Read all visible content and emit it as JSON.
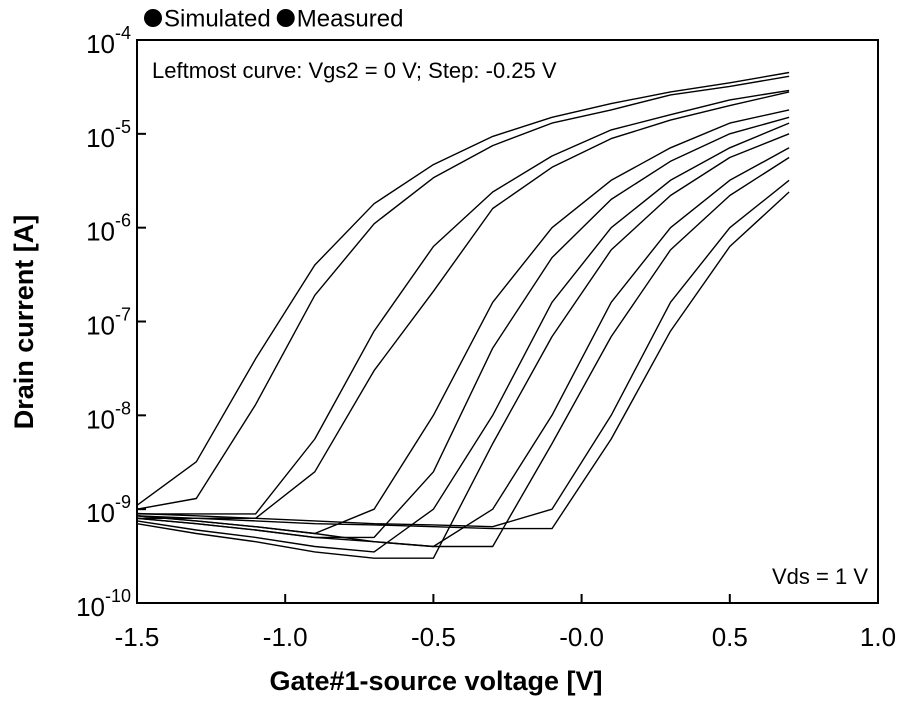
{
  "chart_data": {
    "type": "line",
    "log_y": true,
    "xlabel": "Gate#1-source voltage  [V]",
    "ylabel": "Drain current  [A]",
    "annotations": [
      "Leftmost curve: Vgs2 = 0 V; Step: -0.25 V",
      "Vds = 1 V"
    ],
    "xlim": [
      -1.5,
      1.0
    ],
    "ylim": [
      1e-10,
      0.0001
    ],
    "xticks": [
      {
        "value": -1.5,
        "label": "-1.5"
      },
      {
        "value": -1.0,
        "label": "-1.0"
      },
      {
        "value": -0.5,
        "label": "-0.5"
      },
      {
        "value": 0,
        "label": "-0.0"
      },
      {
        "value": 0.5,
        "label": "0.5"
      },
      {
        "value": 1.0,
        "label": "1.0"
      }
    ],
    "yticks": [
      {
        "value": 1e-10,
        "label": "10-10"
      },
      {
        "value": 1e-09,
        "label": "10-9"
      },
      {
        "value": 1e-08,
        "label": "10-8"
      },
      {
        "value": 1e-07,
        "label": "10-7"
      },
      {
        "value": 1e-06,
        "label": "10-6"
      },
      {
        "value": 1e-05,
        "label": "10-5"
      },
      {
        "value": 0.0001,
        "label": "10-4"
      }
    ],
    "x": [
      -1.5,
      -1.3,
      -1.1,
      -0.9,
      -0.7,
      -0.5,
      -0.3,
      -0.1,
      0.1,
      0.3,
      0.5,
      0.7
    ],
    "series": [
      {
        "name": "Simulated",
        "color": "#000000",
        "values": [
          [
            1.1e-09,
            3.2e-09,
            4e-08,
            4e-07,
            1.8e-06,
            4.7e-06,
            9.4e-06,
            1.5e-05,
            2.1e-05,
            2.8e-05,
            3.5e-05,
            4.5e-05
          ],
          [
            8.9e-10,
            8.9e-10,
            8.9e-10,
            5.6e-09,
            7.9e-08,
            6.3e-07,
            2.4e-06,
            5.8e-06,
            1.1e-05,
            1.6e-05,
            2.3e-05,
            2.9e-05
          ],
          [
            8.5e-10,
            7.5e-10,
            6.5e-10,
            5.5e-10,
            1e-09,
            1e-08,
            1.6e-07,
            1e-06,
            3.2e-06,
            7.1e-06,
            1.3e-05,
            1.8e-05
          ],
          [
            7.5e-10,
            6e-10,
            5e-10,
            4e-10,
            3.5e-10,
            1e-09,
            1e-08,
            1.6e-07,
            1e-06,
            3.2e-06,
            7.1e-06,
            1.3e-05
          ],
          [
            8.5e-10,
            7.5e-10,
            6.5e-10,
            5.5e-10,
            4.5e-10,
            4e-10,
            1e-09,
            1e-08,
            1.6e-07,
            1e-06,
            3.2e-06,
            7.1e-06
          ],
          [
            9e-10,
            8.5e-10,
            8e-10,
            7.5e-10,
            7e-10,
            6.8e-10,
            6.5e-10,
            1e-09,
            1e-08,
            1.6e-07,
            1e-06,
            3.2e-06
          ]
        ]
      },
      {
        "name": "Measured",
        "color": "#000000",
        "values": [
          [
            1e-09,
            1.3e-09,
            1.3e-08,
            1.9e-07,
            1.1e-06,
            3.4e-06,
            7.5e-06,
            1.3e-05,
            1.8e-05,
            2.6e-05,
            3.2e-05,
            4.1e-05
          ],
          [
            8e-10,
            8e-10,
            8e-10,
            2.5e-09,
            3e-08,
            2.1e-07,
            1.6e-06,
            4.4e-06,
            8.9e-06,
            1.4e-05,
            2e-05,
            2.8e-05
          ],
          [
            8e-10,
            7e-10,
            6e-10,
            5e-10,
            5e-10,
            2.5e-09,
            5.2e-08,
            4.8e-07,
            2e-06,
            5.1e-06,
            1e-05,
            1.5e-05
          ],
          [
            7e-10,
            5.5e-10,
            4.5e-10,
            3.5e-10,
            3e-10,
            3e-10,
            5e-09,
            6.9e-08,
            5.8e-07,
            2.2e-06,
            5.6e-06,
            1e-05
          ],
          [
            8e-10,
            7e-10,
            6e-10,
            5e-10,
            4.5e-10,
            4e-10,
            4e-10,
            5e-09,
            6.9e-08,
            5.8e-07,
            2.2e-06,
            5.6e-06
          ],
          [
            8.5e-10,
            8e-10,
            7.5e-10,
            7e-10,
            6.8e-10,
            6.5e-10,
            6.2e-10,
            6.2e-10,
            5.6e-09,
            7.9e-08,
            6.3e-07,
            2.4e-06
          ]
        ]
      }
    ]
  }
}
